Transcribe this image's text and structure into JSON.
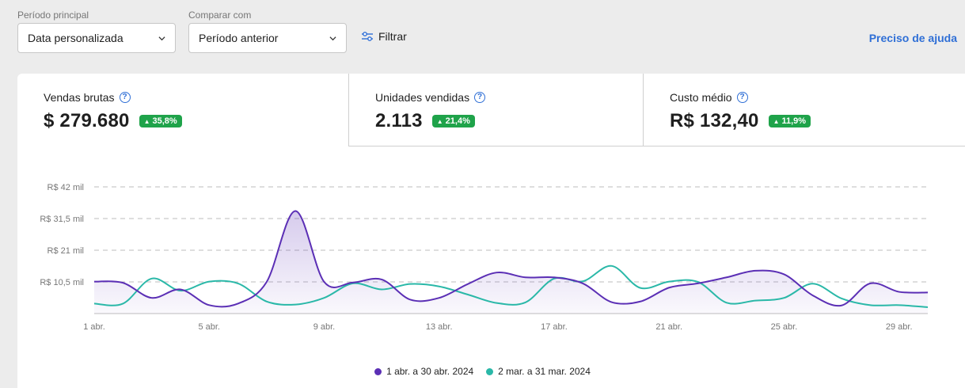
{
  "filters": {
    "main_period_label": "Período principal",
    "main_period_value": "Data personalizada",
    "compare_label": "Comparar com",
    "compare_value": "Período anterior",
    "filter_button": "Filtrar",
    "help_link": "Preciso de ajuda"
  },
  "metrics": [
    {
      "label": "Vendas brutas",
      "value": "$ 279.680",
      "badge": "35,8%"
    },
    {
      "label": "Unidades vendidas",
      "value": "2.113",
      "badge": "21,4%"
    },
    {
      "label": "Custo médio",
      "value": "R$ 132,40",
      "badge": "11,9%"
    }
  ],
  "colors": {
    "primary_series": "#5b2fb5",
    "compare_series": "#2ab8a8",
    "positive_badge": "#1fa34a",
    "link": "#2f6fd6"
  },
  "chart_data": {
    "type": "area",
    "y_ticks": [
      {
        "value": 10.5,
        "label": "R$ 10,5 mil"
      },
      {
        "value": 21,
        "label": "R$ 21 mil"
      },
      {
        "value": 31.5,
        "label": "R$ 31,5 mil"
      },
      {
        "value": 42,
        "label": "R$ 42 mil"
      }
    ],
    "ylim": [
      0,
      42
    ],
    "x_ticks": [
      {
        "day": 1,
        "label": "1 abr."
      },
      {
        "day": 5,
        "label": "5 abr."
      },
      {
        "day": 9,
        "label": "9 abr."
      },
      {
        "day": 13,
        "label": "13 abr."
      },
      {
        "day": 17,
        "label": "17 abr."
      },
      {
        "day": 21,
        "label": "21 abr."
      },
      {
        "day": 25,
        "label": "25 abr."
      },
      {
        "day": 29,
        "label": "29 abr."
      }
    ],
    "xlim": [
      1,
      30
    ],
    "grid": true,
    "legend_position": "bottom-center",
    "series": [
      {
        "name": "1 abr. a 30 abr. 2024",
        "x": [
          1,
          2,
          3,
          4,
          5,
          6,
          7,
          8,
          9,
          10,
          11,
          12,
          13,
          14,
          15,
          16,
          17,
          18,
          19,
          20,
          21,
          22,
          23,
          24,
          25,
          26,
          27,
          28,
          29,
          30
        ],
        "values": [
          10.6,
          10.2,
          5.2,
          8.0,
          2.8,
          3.3,
          10.5,
          34.0,
          10.5,
          10.3,
          11.3,
          4.6,
          5.2,
          9.8,
          13.6,
          12.0,
          12.0,
          10.0,
          3.8,
          4.0,
          8.6,
          10.0,
          12.0,
          14.2,
          13.0,
          6.0,
          2.7,
          10.0,
          7.2,
          7.0
        ],
        "color": "#5b2fb5"
      },
      {
        "name": "2 mar. a 31 mar. 2024",
        "x": [
          1,
          2,
          3,
          4,
          5,
          6,
          7,
          8,
          9,
          10,
          11,
          12,
          13,
          14,
          15,
          16,
          17,
          18,
          19,
          20,
          21,
          22,
          23,
          24,
          25,
          26,
          27,
          28,
          29,
          30
        ],
        "values": [
          3.3,
          3.3,
          11.6,
          7.6,
          10.6,
          10.0,
          4.0,
          3.0,
          5.2,
          10.0,
          8.0,
          9.8,
          9.0,
          6.3,
          3.5,
          3.7,
          11.6,
          10.7,
          15.8,
          8.5,
          10.6,
          10.5,
          3.6,
          4.3,
          5.2,
          9.9,
          5.0,
          2.8,
          2.8,
          2.1
        ],
        "color": "#2ab8a8"
      }
    ]
  }
}
